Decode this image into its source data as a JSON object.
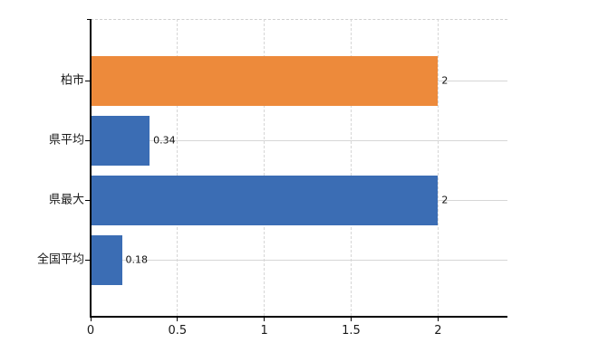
{
  "chart_data": {
    "type": "bar",
    "orientation": "horizontal",
    "title": "",
    "categories": [
      "柏市",
      "県平均",
      "県最大",
      "全国平均"
    ],
    "values": [
      2,
      0.34,
      2,
      0.18
    ],
    "value_labels": [
      "2",
      "0.34",
      "2",
      "0.18"
    ],
    "bar_colors": [
      "#ED8A3B",
      "#3B6DB4",
      "#3B6DB4",
      "#3B6DB4"
    ],
    "x_ticks": [
      0,
      0.5,
      1,
      1.5,
      2
    ],
    "x_tick_labels": [
      "0",
      "0.5",
      "1",
      "1.5",
      "2"
    ],
    "xlim": [
      0,
      2.4
    ],
    "grid": true,
    "legend": false,
    "colors": {
      "axis": "#000000",
      "gridline": "#d6d6d6",
      "category_label": "#1a1a1a",
      "value_label": "#111111",
      "background": "#ffffff"
    }
  }
}
